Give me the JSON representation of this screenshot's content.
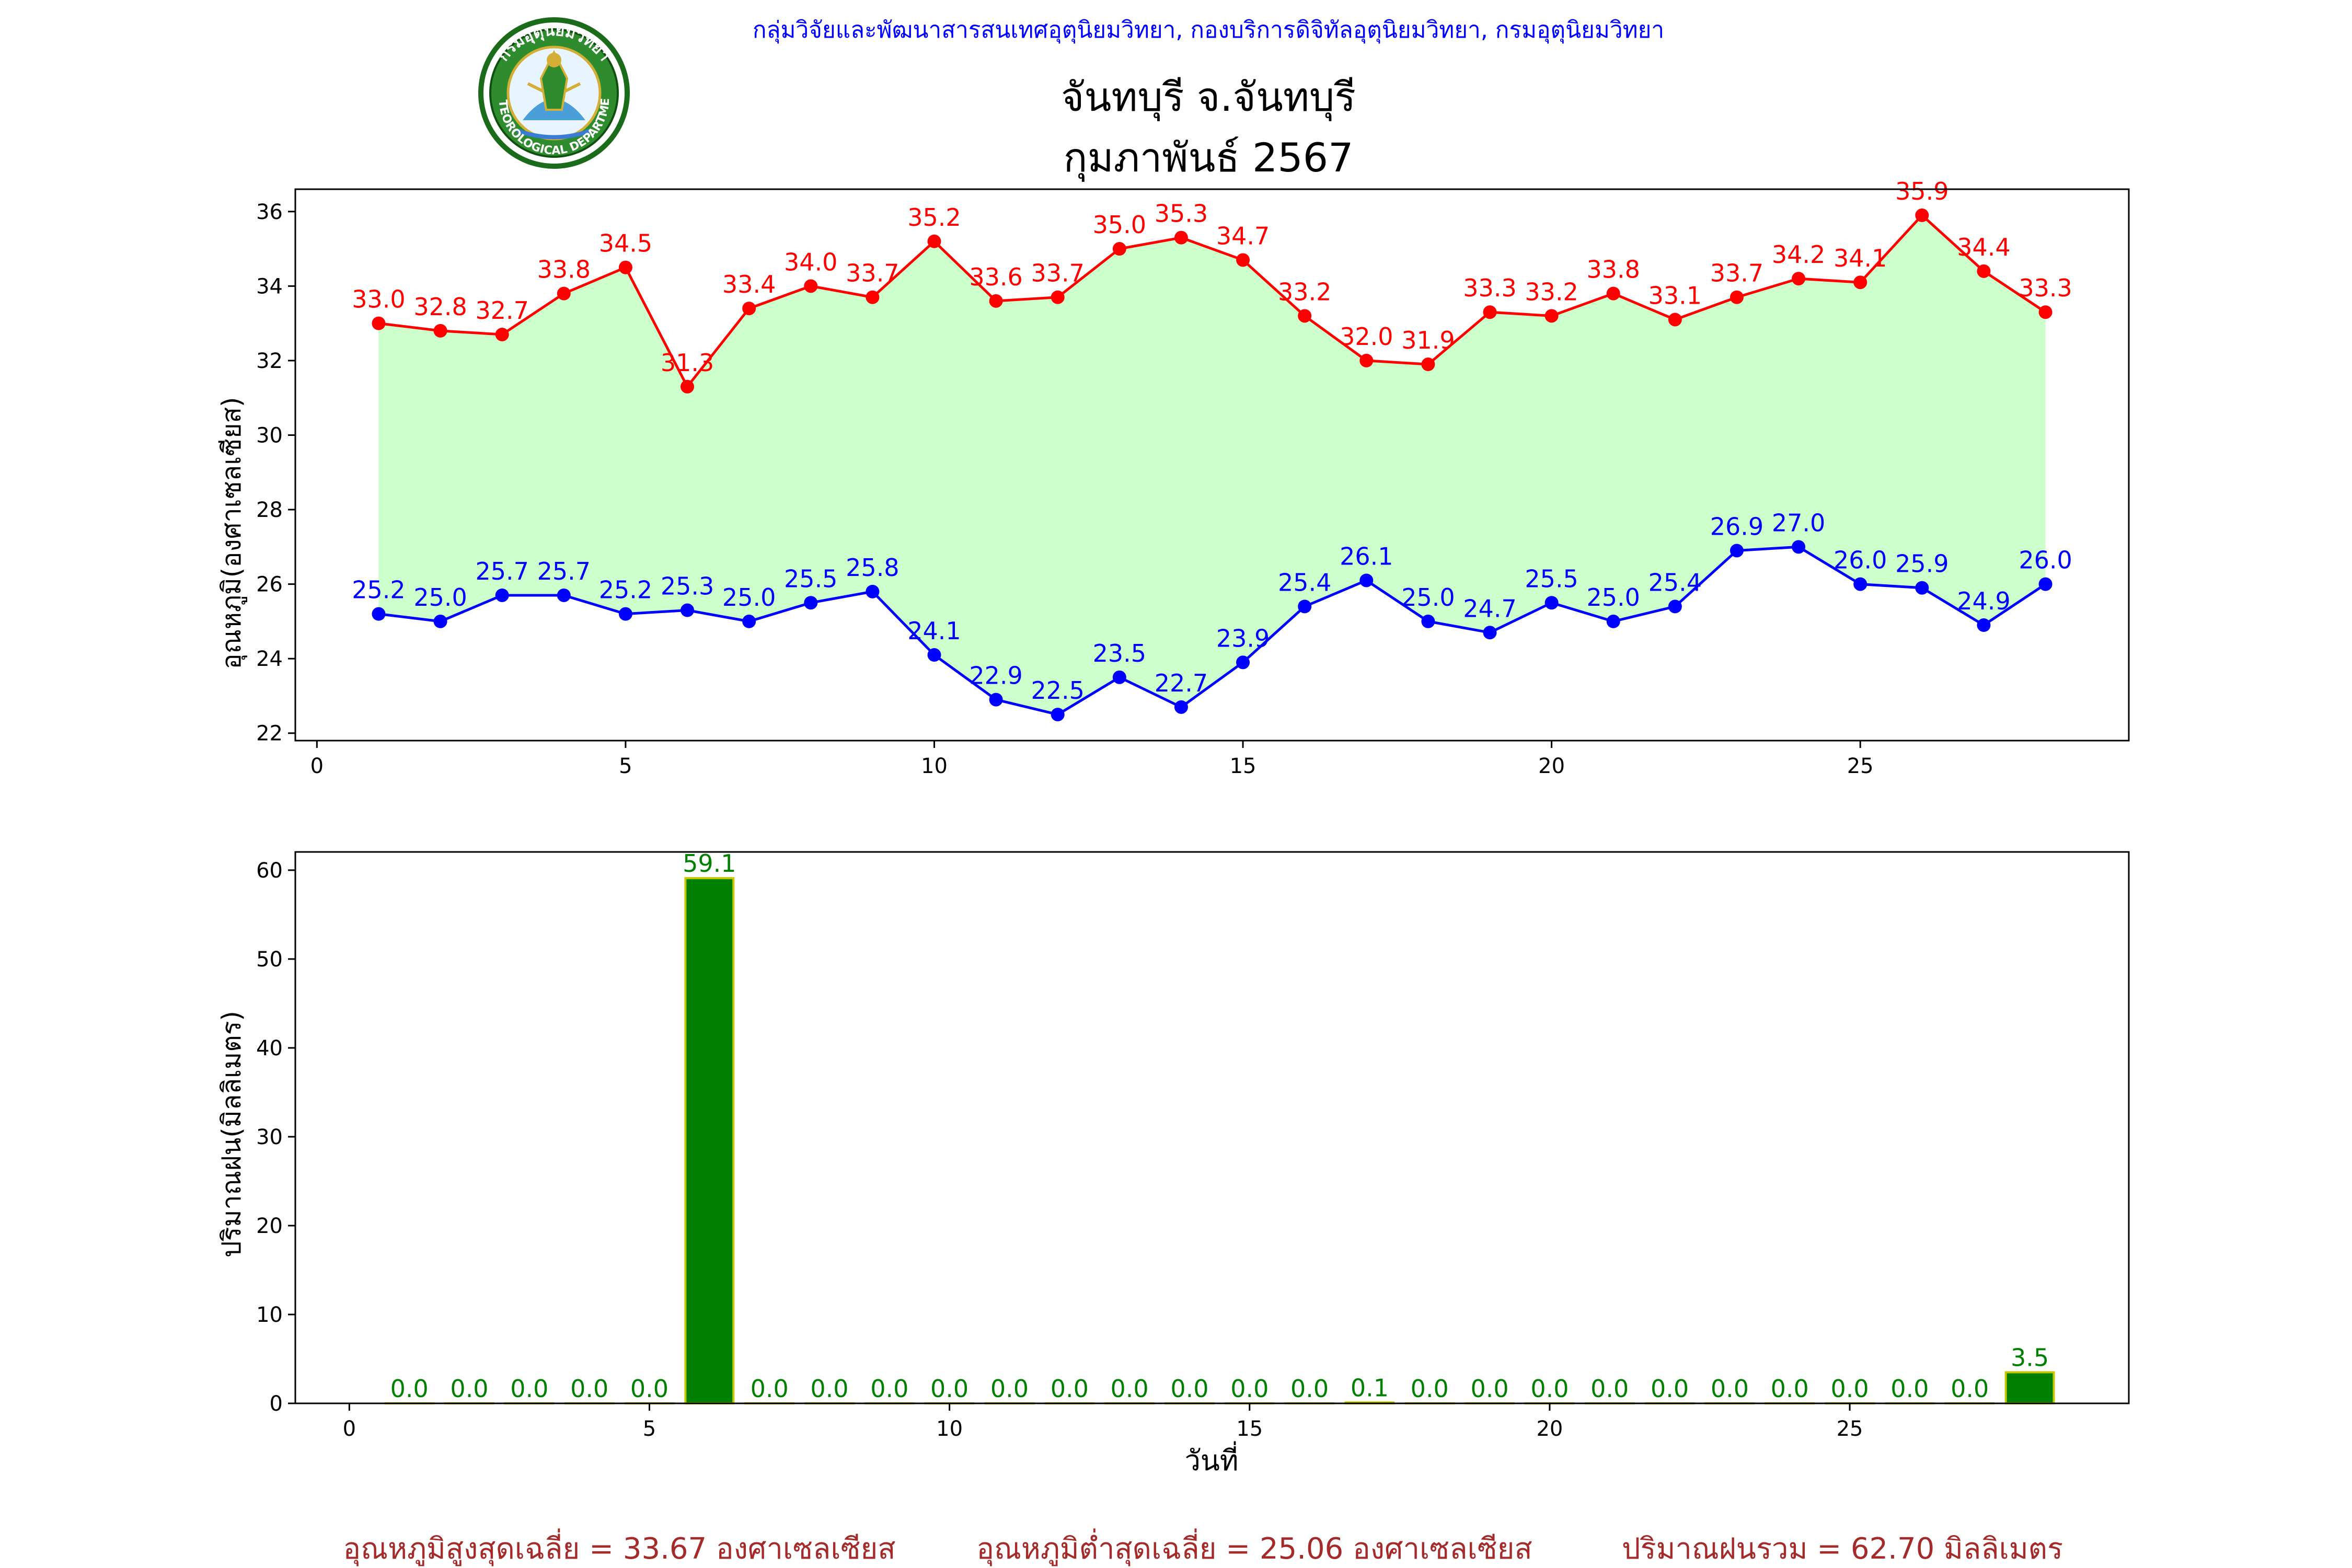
{
  "header": {
    "organization": "กลุ่มวิจัยและพัฒนาสารสนเทศอุตุนิยมวิทยา, กองบริการดิจิทัลอุตุนิยมวิทยา, กรมอุตุนิยมวิทยา",
    "station": "จันทบุรี จ.จันทบุรี",
    "period": "กุมภาพันธ์ 2567",
    "logo_ring_text": "กรมอุตุนิยมวิทยา",
    "logo_ring_text_en": "METEOROLOGICAL DEPARTMENT"
  },
  "colors": {
    "max_temp": "#ff0000",
    "min_temp": "#0000ff",
    "temp_fill": "#ccffcc",
    "rain_bar": "#008000",
    "rain_edge": "#c8c800",
    "rain_label": "#008000",
    "summary_text": "#a52a2a",
    "header_org": "#0000ff"
  },
  "chart_data": [
    {
      "type": "line",
      "ylabel": "อุณหภูมิ(องศาเซลเซียส)",
      "xlabel": "",
      "xlim": [
        -0.35,
        29.35
      ],
      "ylim": [
        21.8,
        36.6
      ],
      "xticks": [
        0,
        5,
        10,
        15,
        20,
        25
      ],
      "yticks": [
        22,
        24,
        26,
        28,
        30,
        32,
        34,
        36
      ],
      "grid": false,
      "x": [
        1,
        2,
        3,
        4,
        5,
        6,
        7,
        8,
        9,
        10,
        11,
        12,
        13,
        14,
        15,
        16,
        17,
        18,
        19,
        20,
        21,
        22,
        23,
        24,
        25,
        26,
        27,
        28
      ],
      "series": [
        {
          "key": "max",
          "values": [
            33.0,
            32.8,
            32.7,
            33.8,
            34.5,
            31.3,
            33.4,
            34.0,
            33.7,
            35.2,
            33.6,
            33.7,
            35.0,
            35.3,
            34.7,
            33.2,
            32.0,
            31.9,
            33.3,
            33.2,
            33.8,
            33.1,
            33.7,
            34.2,
            34.1,
            35.9,
            34.4,
            33.3
          ]
        },
        {
          "key": "min",
          "values": [
            25.2,
            25.0,
            25.7,
            25.7,
            25.2,
            25.3,
            25.0,
            25.5,
            25.8,
            24.1,
            22.9,
            22.5,
            23.5,
            22.7,
            23.9,
            25.4,
            26.1,
            25.0,
            24.7,
            25.5,
            25.0,
            25.4,
            26.9,
            27.0,
            26.0,
            25.9,
            24.9,
            26.0
          ]
        }
      ]
    },
    {
      "type": "bar",
      "ylabel": "ปริมาณฝน(มิลลิเมตร)",
      "xlabel": "วันที่",
      "xlim": [
        -0.9,
        29.65
      ],
      "ylim": [
        0,
        62.05
      ],
      "xticks": [
        0,
        5,
        10,
        15,
        20,
        25
      ],
      "yticks": [
        0,
        10,
        20,
        30,
        40,
        50,
        60
      ],
      "grid": false,
      "x": [
        1,
        2,
        3,
        4,
        5,
        6,
        7,
        8,
        9,
        10,
        11,
        12,
        13,
        14,
        15,
        16,
        17,
        18,
        19,
        20,
        21,
        22,
        23,
        24,
        25,
        26,
        27,
        28
      ],
      "values": [
        0.0,
        0.0,
        0.0,
        0.0,
        0.0,
        59.1,
        0.0,
        0.0,
        0.0,
        0.0,
        0.0,
        0.0,
        0.0,
        0.0,
        0.0,
        0.0,
        0.1,
        0.0,
        0.0,
        0.0,
        0.0,
        0.0,
        0.0,
        0.0,
        0.0,
        0.0,
        0.0,
        3.5
      ]
    }
  ],
  "summary": {
    "avg_max": "อุณหภูมิสูงสุดเฉลี่ย = 33.67 องศาเซลเซียส",
    "avg_min": "อุณหภูมิต่ำสุดเฉลี่ย = 25.06 องศาเซลเซียส",
    "total_rain": "ปริมาณฝนรวม = 62.70 มิลลิเมตร"
  }
}
